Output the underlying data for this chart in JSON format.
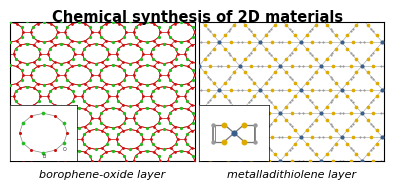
{
  "title": "Chemical synthesis of 2D materials",
  "title_fontsize": 10.5,
  "title_fontweight": "bold",
  "label_left": "borophene-oxide layer",
  "label_right": "metalladithiolene layer",
  "label_fontsize": 8,
  "bg_color": "#ffffff",
  "boron_color": "#22bb22",
  "oxygen_color": "#cc1111",
  "metal_color": "#3a5f8a",
  "sulfur_color": "#ddaa00",
  "carbon_color": "#999999",
  "bond_color_left": "#cc1111",
  "bond_color_right": "#aaaaaa"
}
